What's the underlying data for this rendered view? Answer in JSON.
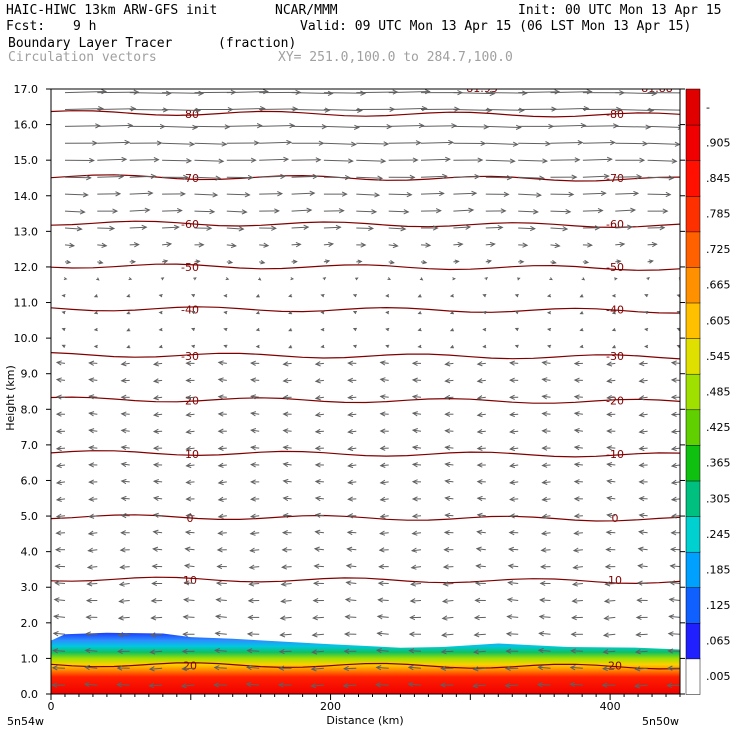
{
  "header": {
    "model": "HAIC-HIWC 13km ARW-GFS init",
    "org": "NCAR/MMM",
    "init": "Init: 00 UTC Mon 13 Apr 15",
    "fcst_label": "Fcst:",
    "fcst_value": "9 h",
    "valid": "Valid: 09 UTC Mon 13 Apr 15 (06 LST Mon 13 Apr 15)",
    "field_name": "Boundary Layer Tracer",
    "field_units": "(fraction)",
    "overlay_name": "Circulation vectors",
    "xsec": "XY= 251.0,100.0 to 284.7,100.0"
  },
  "chart_data": {
    "type": "heatmap",
    "xlabel": "Distance (km)",
    "ylabel": "Height (km)",
    "xlim": [
      0,
      450
    ],
    "ylim": [
      0,
      17
    ],
    "x_ticks": [
      0,
      200,
      400
    ],
    "y_ticks": [
      "0.0",
      "1.0",
      "2.0",
      "3.0",
      "4.0",
      "5.0",
      "6.0",
      "7.0",
      "8.0",
      "9.0",
      "10.0",
      "11.0",
      "12.0",
      "13.0",
      "14.0",
      "15.0",
      "16.0",
      "17.0"
    ],
    "x_left_label": "5n54w",
    "x_right_label": "5n50w",
    "temperature_contours": [
      {
        "level": "20",
        "height": 0.8
      },
      {
        "level": "10",
        "height": 3.2
      },
      {
        "level": "0",
        "height": 4.95
      },
      {
        "level": "-10",
        "height": 6.75
      },
      {
        "level": "-20",
        "height": 8.25
      },
      {
        "level": "-30",
        "height": 9.5
      },
      {
        "level": "-40",
        "height": 10.8
      },
      {
        "level": "-50",
        "height": 12.0
      },
      {
        "level": "-60",
        "height": 13.2
      },
      {
        "level": "-70",
        "height": 14.5
      },
      {
        "level": "-80",
        "height": 16.3
      }
    ],
    "top_labels": [
      "-81.93",
      "-81.88"
    ],
    "tracer_top_km": [
      [
        0,
        1.5
      ],
      [
        10,
        1.68
      ],
      [
        40,
        1.72
      ],
      [
        80,
        1.7
      ],
      [
        100,
        1.6
      ],
      [
        130,
        1.55
      ],
      [
        200,
        1.4
      ],
      [
        250,
        1.3
      ],
      [
        280,
        1.32
      ],
      [
        320,
        1.42
      ],
      [
        370,
        1.32
      ],
      [
        420,
        1.3
      ],
      [
        450,
        1.25
      ]
    ],
    "colorbar": {
      "ticks": [
        ".005",
        ".065",
        ".125",
        ".185",
        ".245",
        ".305",
        ".365",
        ".425",
        ".485",
        ".545",
        ".605",
        ".665",
        ".725",
        ".785",
        ".845",
        ".905",
        "-"
      ],
      "colors": [
        "#ffffff",
        "#2020ff",
        "#1060ff",
        "#00a0ff",
        "#00d0d0",
        "#00c080",
        "#10c010",
        "#60d000",
        "#a0e000",
        "#e0e000",
        "#ffc000",
        "#ff9000",
        "#ff6000",
        "#ff3000",
        "#ff1000",
        "#f00000",
        "#e00000"
      ]
    }
  }
}
